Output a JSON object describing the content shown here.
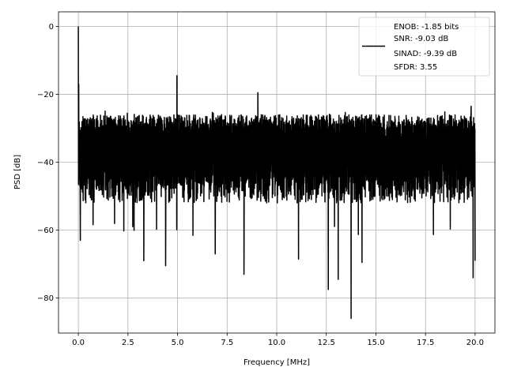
{
  "chart_data": {
    "type": "line",
    "title": "",
    "xlabel": "Frequency [MHz]",
    "ylabel": "PSD [dB]",
    "xlim": [
      -1,
      21
    ],
    "ylim": [
      -90.3,
      4.3
    ],
    "grid": true,
    "xticks": [
      0,
      2.5,
      5,
      7.5,
      10,
      12.5,
      15,
      17.5,
      20
    ],
    "xtick_labels": [
      "0.0",
      "2.5",
      "5.0",
      "7.5",
      "10.0",
      "12.5",
      "15.0",
      "17.5",
      "20.0"
    ],
    "yticks": [
      0,
      -20,
      -40,
      -60,
      -80
    ],
    "ytick_labels": [
      "0",
      "−20",
      "−40",
      "−60",
      "−80"
    ],
    "series": [
      {
        "name": "PSD",
        "color": "#000000",
        "x_range": [
          0,
          20
        ],
        "noise_floor_upper": [
          -30,
          -26
        ],
        "noise_floor_lower": [
          -52,
          -44
        ],
        "notable_points": [
          {
            "x": 0.0,
            "y": 0
          },
          {
            "x": 0.02,
            "y": -17
          },
          {
            "x": 0.1,
            "y": -63
          },
          {
            "x": 3.3,
            "y": -69
          },
          {
            "x": 4.4,
            "y": -70.5
          },
          {
            "x": 4.97,
            "y": -14.5
          },
          {
            "x": 6.9,
            "y": -67
          },
          {
            "x": 8.35,
            "y": -73
          },
          {
            "x": 9.05,
            "y": -19.5
          },
          {
            "x": 11.1,
            "y": -68.5
          },
          {
            "x": 12.6,
            "y": -77.5
          },
          {
            "x": 13.1,
            "y": -74.5
          },
          {
            "x": 13.75,
            "y": -86
          },
          {
            "x": 14.3,
            "y": -69.5
          },
          {
            "x": 19.8,
            "y": -23.5
          },
          {
            "x": 19.9,
            "y": -74
          },
          {
            "x": 20.0,
            "y": -69
          }
        ]
      }
    ],
    "legend": {
      "placement": "upper right",
      "lines": [
        "ENOB: -1.85 bits",
        "SNR: -9.03 dB",
        "SINAD: -9.39 dB",
        "SFDR: 3.55"
      ]
    }
  }
}
